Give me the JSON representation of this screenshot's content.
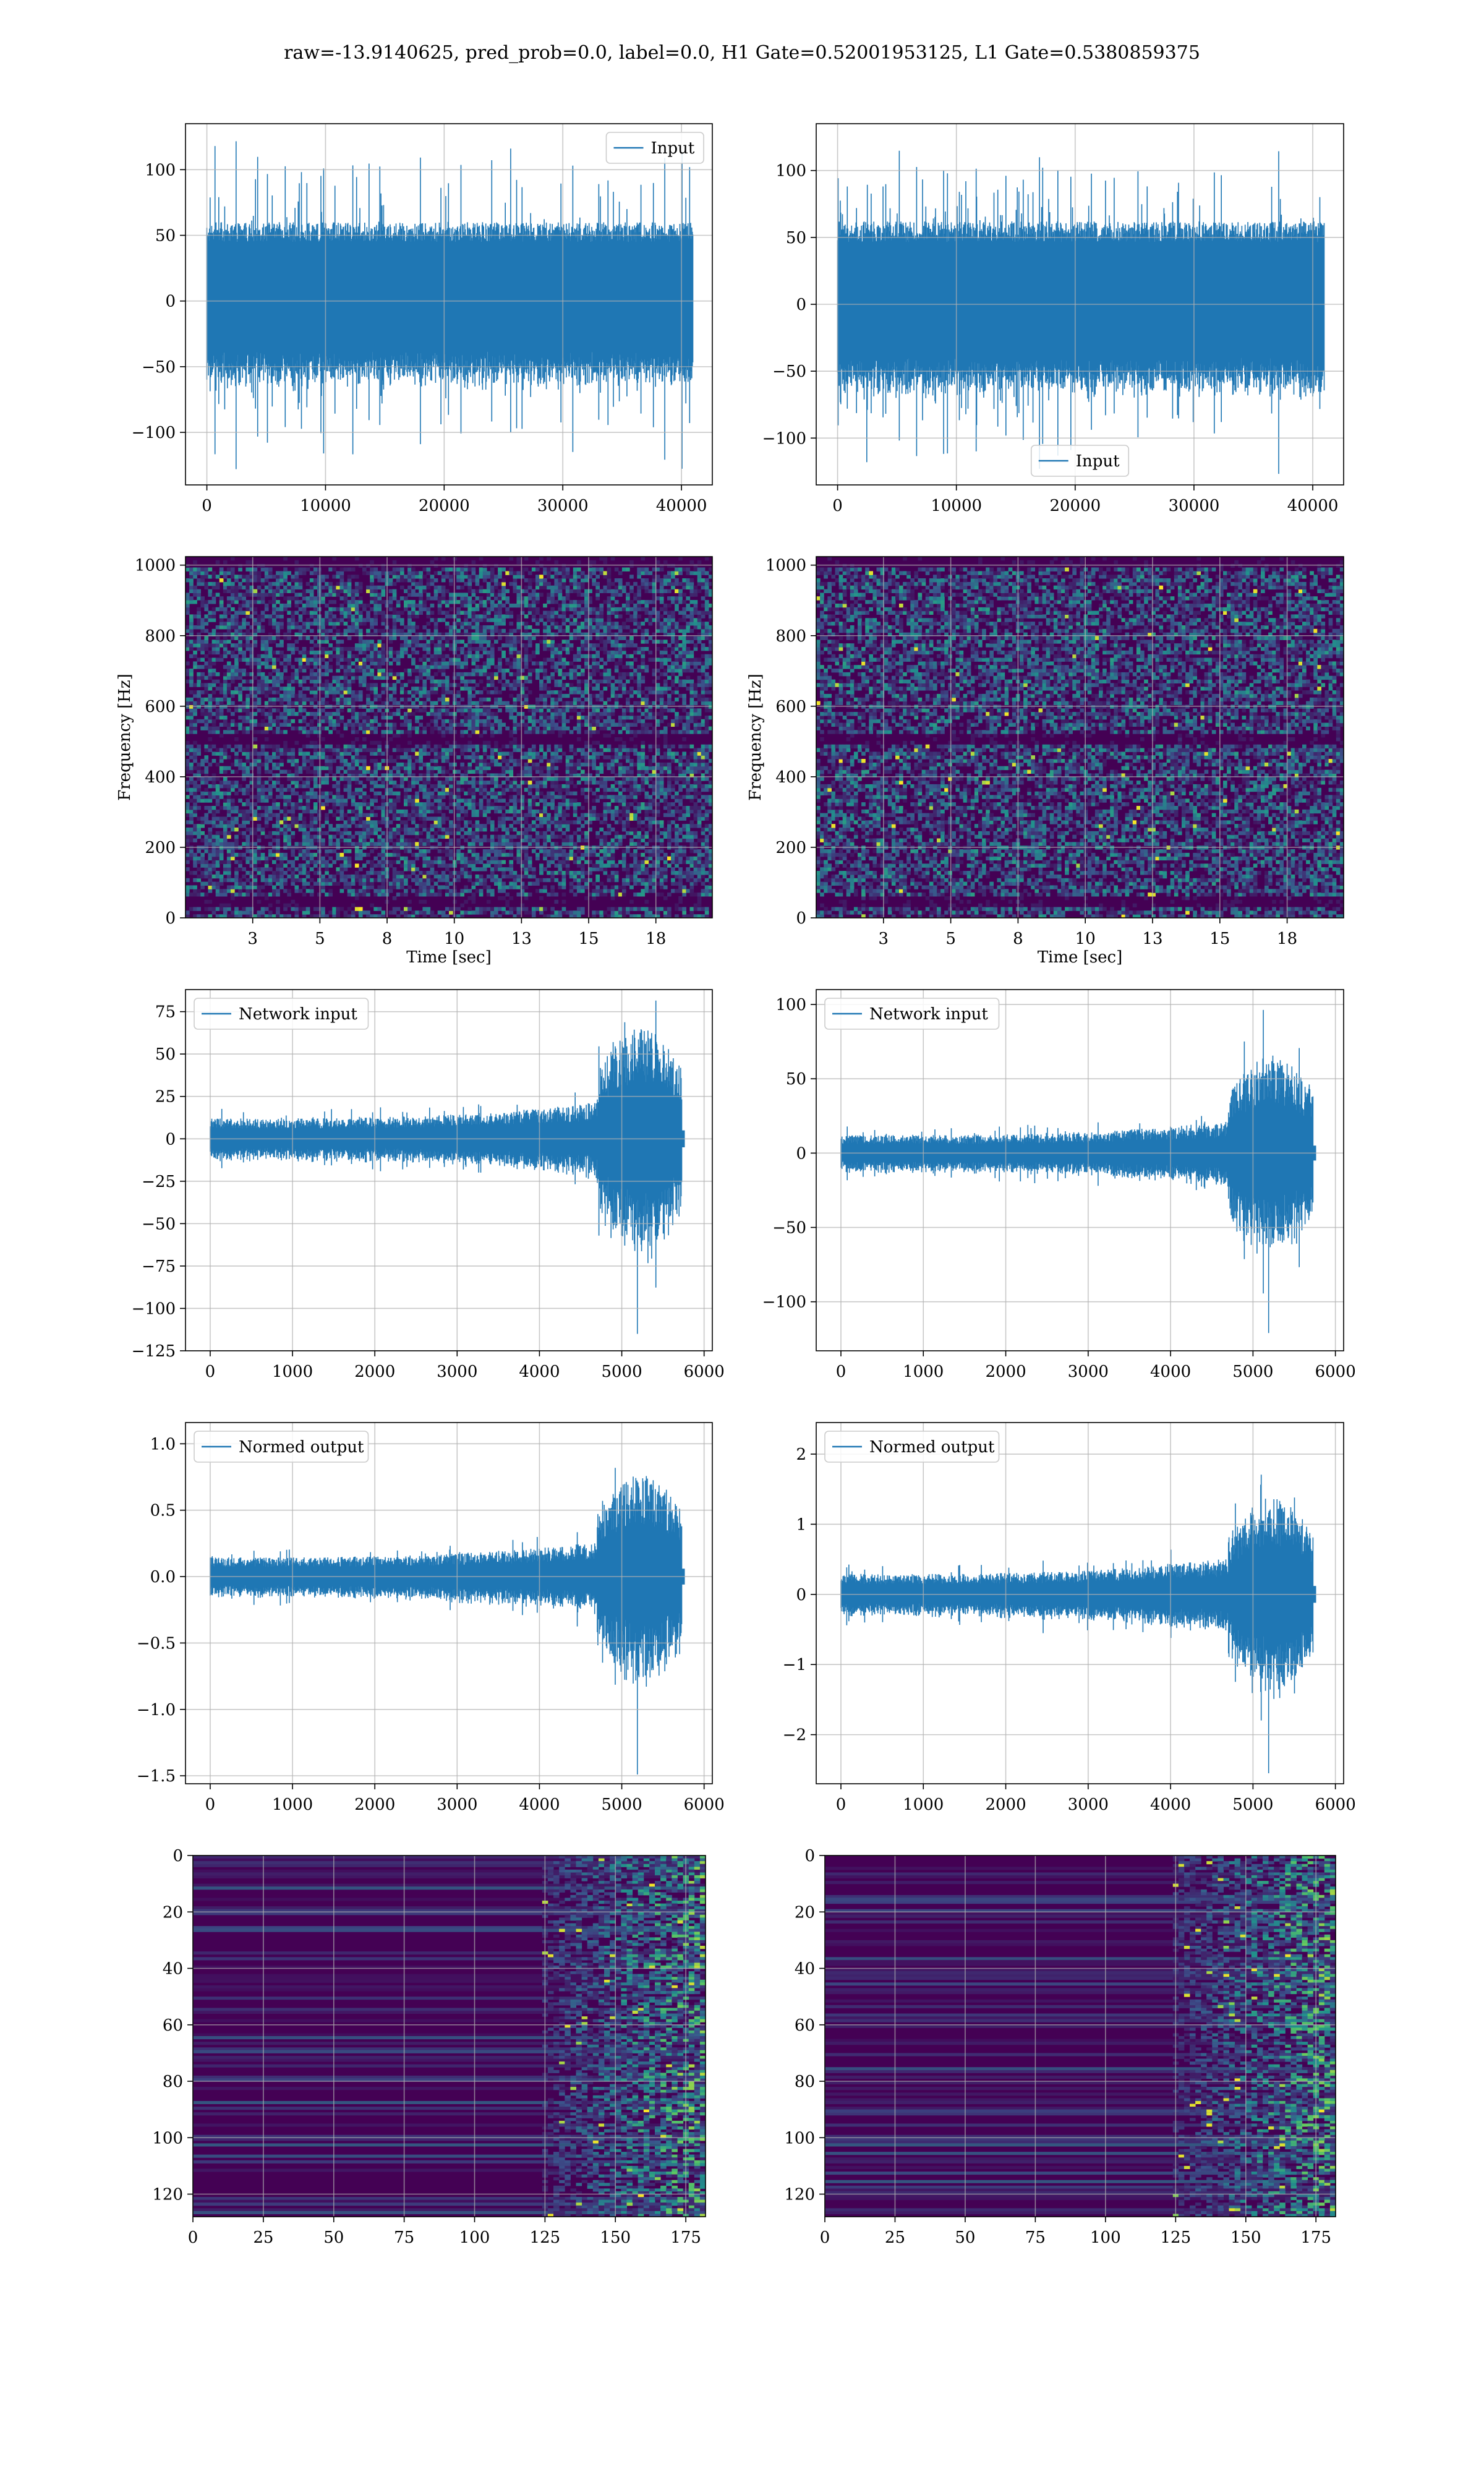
{
  "title": "raw=-13.9140625, pred_prob=0.0, label=0.0, H1 Gate=0.52001953125, L1 Gate=0.5380859375",
  "colors": {
    "line": "#1f77b4",
    "grid": "#b0b0b0",
    "viridis_low": "#440154",
    "viridis_mid": "#21918c",
    "viridis_high": "#fde725"
  },
  "chart_data": [
    {
      "id": "input-h1",
      "type": "line",
      "xlim": [
        -1800,
        42600
      ],
      "ylim": [
        -140,
        135
      ],
      "xticks": [
        0,
        10000,
        20000,
        30000,
        40000
      ],
      "yticks": [
        -100,
        -50,
        0,
        50,
        100
      ],
      "xlabel": "",
      "ylabel": "",
      "legend": {
        "label": "Input",
        "placement": "top-right"
      },
      "series": [
        {
          "name": "Input",
          "kind": "noise",
          "length": 40960,
          "band": 60,
          "peak": 128
        }
      ]
    },
    {
      "id": "input-l1",
      "type": "line",
      "xlim": [
        -1800,
        42600
      ],
      "ylim": [
        -135,
        135
      ],
      "xticks": [
        0,
        10000,
        20000,
        30000,
        40000
      ],
      "yticks": [
        -100,
        -50,
        0,
        50,
        100
      ],
      "xlabel": "",
      "ylabel": "",
      "legend": {
        "label": "Input",
        "placement": "lower-center"
      },
      "series": [
        {
          "name": "Input",
          "kind": "noise",
          "length": 40960,
          "band": 62,
          "peak": 118
        }
      ]
    },
    {
      "id": "spectrogram-h1",
      "type": "heatmap",
      "xlim": [
        0,
        19.6
      ],
      "ylim": [
        0,
        1024
      ],
      "xticks": [
        2.5,
        5.0,
        7.5,
        10.0,
        12.5,
        15.0,
        17.5
      ],
      "yticks": [
        0,
        200,
        400,
        600,
        800,
        1000
      ],
      "xlabel": "Time [sec]",
      "ylabel": "Frequency [Hz]",
      "dark_bands_hz": [
        40,
        500,
        1000
      ]
    },
    {
      "id": "spectrogram-l1",
      "type": "heatmap",
      "xlim": [
        0,
        19.6
      ],
      "ylim": [
        0,
        1024
      ],
      "xticks": [
        2.5,
        5.0,
        7.5,
        10.0,
        12.5,
        15.0,
        17.5
      ],
      "yticks": [
        0,
        200,
        400,
        600,
        800,
        1000
      ],
      "xlabel": "Time [sec]",
      "ylabel": "Frequency [Hz]",
      "dark_bands_hz": [
        40,
        500,
        1000
      ]
    },
    {
      "id": "network-input-h1",
      "type": "line",
      "xlim": [
        -300,
        6100
      ],
      "ylim": [
        -125,
        88
      ],
      "xticks": [
        0,
        1000,
        2000,
        3000,
        4000,
        5000,
        6000
      ],
      "yticks": [
        -125,
        -100,
        -75,
        -50,
        -25,
        0,
        25,
        50,
        75
      ],
      "xlabel": "",
      "ylabel": "",
      "legend": {
        "label": "Network input",
        "placement": "top-left"
      },
      "series": [
        {
          "name": "Network input",
          "kind": "chirp",
          "length": 5760,
          "base": 10,
          "burst_start": 4700,
          "burst_amp": 55,
          "peak": 115
        }
      ]
    },
    {
      "id": "network-input-l1",
      "type": "line",
      "xlim": [
        -300,
        6100
      ],
      "ylim": [
        -133,
        110
      ],
      "xticks": [
        0,
        1000,
        2000,
        3000,
        4000,
        5000,
        6000
      ],
      "yticks": [
        -100,
        -50,
        0,
        50,
        100
      ],
      "xlabel": "",
      "ylabel": "",
      "legend": {
        "label": "Network input",
        "placement": "top-left"
      },
      "series": [
        {
          "name": "Network input",
          "kind": "chirp",
          "length": 5760,
          "base": 10,
          "burst_start": 4700,
          "burst_amp": 55,
          "peak": 121
        }
      ]
    },
    {
      "id": "normed-output-h1",
      "type": "line",
      "xlim": [
        -300,
        6100
      ],
      "ylim": [
        -1.56,
        1.16
      ],
      "xticks": [
        0,
        1000,
        2000,
        3000,
        4000,
        5000,
        6000
      ],
      "yticks": [
        -1.5,
        -1.0,
        -0.5,
        0.0,
        0.5,
        1.0
      ],
      "xlabel": "",
      "ylabel": "",
      "legend": {
        "label": "Normed output",
        "placement": "top-left"
      },
      "series": [
        {
          "name": "Normed output",
          "kind": "chirp",
          "length": 5760,
          "base": 0.12,
          "burst_start": 4700,
          "burst_amp": 0.65,
          "peak": 1.49
        }
      ]
    },
    {
      "id": "normed-output-l1",
      "type": "line",
      "xlim": [
        -300,
        6100
      ],
      "ylim": [
        -2.7,
        2.45
      ],
      "xticks": [
        0,
        1000,
        2000,
        3000,
        4000,
        5000,
        6000
      ],
      "yticks": [
        -2,
        -1,
        0,
        1,
        2
      ],
      "xlabel": "",
      "ylabel": "",
      "legend": {
        "label": "Normed output",
        "placement": "top-left"
      },
      "series": [
        {
          "name": "Normed output",
          "kind": "chirp",
          "length": 5760,
          "base": 0.24,
          "burst_start": 4700,
          "burst_amp": 1.15,
          "peak": 2.55
        }
      ]
    },
    {
      "id": "feature-map-h1",
      "type": "heatmap",
      "xlim": [
        0,
        182
      ],
      "ylim": [
        128,
        0
      ],
      "xticks": [
        0,
        25,
        50,
        75,
        100,
        125,
        150,
        175
      ],
      "yticks": [
        0,
        20,
        40,
        60,
        80,
        100,
        120
      ],
      "xlabel": "",
      "ylabel": "",
      "active_from_x": 125
    },
    {
      "id": "feature-map-l1",
      "type": "heatmap",
      "xlim": [
        0,
        182
      ],
      "ylim": [
        128,
        0
      ],
      "xticks": [
        0,
        25,
        50,
        75,
        100,
        125,
        150,
        175
      ],
      "yticks": [
        0,
        20,
        40,
        60,
        80,
        100,
        120
      ],
      "xlabel": "",
      "ylabel": "",
      "active_from_x": 125
    }
  ]
}
